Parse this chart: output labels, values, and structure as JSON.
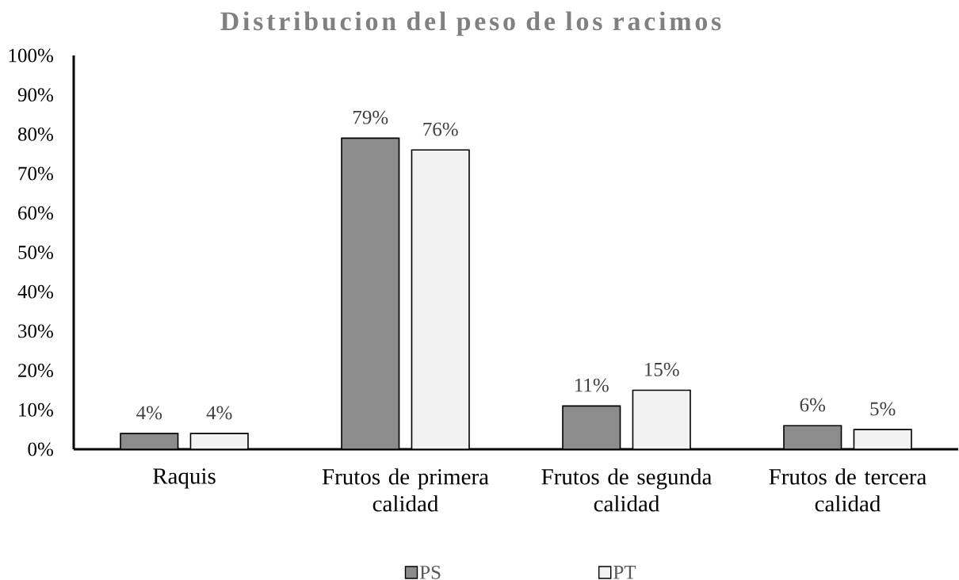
{
  "chart_data": {
    "type": "bar",
    "title": "Distribucion del peso de los racimos",
    "categories": [
      "Raquis",
      "Frutos de primera calidad",
      "Frutos de segunda calidad",
      "Frutos de tercera calidad"
    ],
    "series": [
      {
        "name": "PS",
        "color": "#8c8c8c",
        "values": [
          4,
          79,
          11,
          6
        ],
        "value_labels": [
          "4%",
          "79%",
          "11%",
          "6%"
        ]
      },
      {
        "name": "PT",
        "color": "#f2f2f2",
        "values": [
          4,
          76,
          15,
          5
        ],
        "value_labels": [
          "4%",
          "76%",
          "15%",
          "5%"
        ]
      }
    ],
    "ylim": [
      0,
      100
    ],
    "yticks": [
      {
        "value": 0,
        "label": "0%"
      },
      {
        "value": 10,
        "label": "10%"
      },
      {
        "value": 20,
        "label": "20%"
      },
      {
        "value": 30,
        "label": "30%"
      },
      {
        "value": 40,
        "label": "40%"
      },
      {
        "value": 50,
        "label": "50%"
      },
      {
        "value": 60,
        "label": "60%"
      },
      {
        "value": 70,
        "label": "70%"
      },
      {
        "value": 80,
        "label": "80%"
      },
      {
        "value": 90,
        "label": "90%"
      },
      {
        "value": 100,
        "label": "100%"
      }
    ],
    "legend": "bottom"
  }
}
